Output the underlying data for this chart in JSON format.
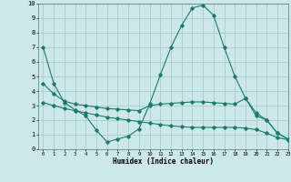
{
  "xlabel": "Humidex (Indice chaleur)",
  "bg_color": "#cce8e8",
  "grid_color": "#aacccc",
  "line_color": "#1a7a6e",
  "xlim": [
    -0.5,
    23
  ],
  "ylim": [
    0,
    10
  ],
  "line1_x": [
    0,
    1,
    2,
    3,
    4,
    5,
    6,
    7,
    8,
    9,
    10,
    11,
    12,
    13,
    14,
    15,
    16,
    17,
    18,
    19,
    20,
    21,
    22,
    23
  ],
  "line1_y": [
    7.0,
    4.5,
    3.2,
    2.7,
    2.3,
    1.3,
    0.5,
    0.7,
    0.9,
    1.4,
    3.1,
    5.1,
    7.0,
    8.5,
    9.7,
    9.9,
    9.2,
    7.0,
    5.0,
    3.5,
    2.3,
    2.0,
    1.1,
    0.7
  ],
  "line2_x": [
    0,
    1,
    2,
    3,
    4,
    5,
    6,
    7,
    8,
    9,
    10,
    11,
    12,
    13,
    14,
    15,
    16,
    17,
    18,
    19,
    20,
    21,
    22,
    23
  ],
  "line2_y": [
    4.5,
    3.8,
    3.3,
    3.1,
    3.0,
    2.9,
    2.8,
    2.75,
    2.7,
    2.65,
    3.0,
    3.1,
    3.15,
    3.2,
    3.25,
    3.25,
    3.2,
    3.15,
    3.1,
    3.5,
    2.5,
    2.0,
    1.1,
    0.7
  ],
  "line3_x": [
    0,
    1,
    2,
    3,
    4,
    5,
    6,
    7,
    8,
    9,
    10,
    11,
    12,
    13,
    14,
    15,
    16,
    17,
    18,
    19,
    20,
    21,
    22,
    23
  ],
  "line3_y": [
    3.2,
    3.0,
    2.8,
    2.65,
    2.5,
    2.35,
    2.2,
    2.1,
    2.0,
    1.9,
    1.8,
    1.7,
    1.6,
    1.55,
    1.5,
    1.5,
    1.5,
    1.5,
    1.5,
    1.45,
    1.35,
    1.1,
    0.8,
    0.65
  ],
  "xtick_fontsize": 4.0,
  "ytick_fontsize": 5.0,
  "xlabel_fontsize": 5.5,
  "marker_size": 1.8,
  "line_width": 0.8
}
